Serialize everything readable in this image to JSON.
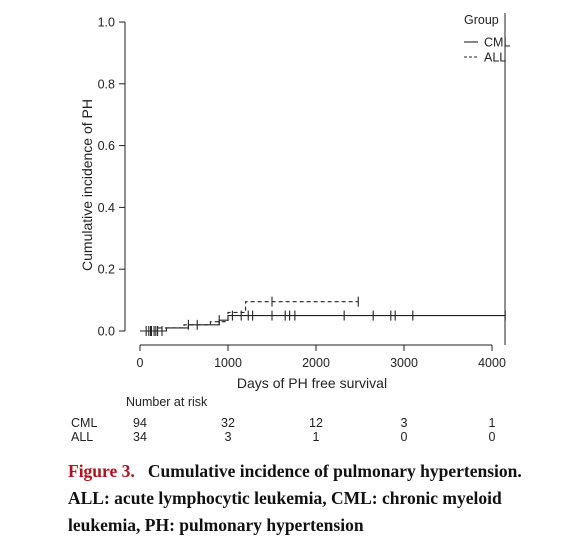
{
  "chart_data": {
    "type": "line",
    "ylabel": "Cumulative incidence of PH",
    "xlabel": "Days of PH free survival",
    "xlim": [
      0,
      4200
    ],
    "ylim": [
      0,
      1.0
    ],
    "x_ticks": [
      0,
      1000,
      2000,
      3000,
      4000
    ],
    "y_ticks": [
      0.0,
      0.2,
      0.4,
      0.6,
      0.8,
      1.0
    ],
    "x_tick_labels": [
      "0",
      "1000",
      "2000",
      "3000",
      "4000"
    ],
    "y_tick_labels": [
      "0.0",
      "0.2",
      "0.4",
      "0.6",
      "0.8",
      "1.0"
    ],
    "grid": false,
    "legend": {
      "title": "Group",
      "placement": "top-right"
    },
    "series": [
      {
        "name": "CML",
        "line_style": "solid",
        "step_x": [
          0,
          300,
          550,
          900,
          1000,
          4150
        ],
        "step_y": [
          0.0,
          0.01,
          0.02,
          0.035,
          0.05,
          0.05
        ],
        "censor_x": [
          100,
          130,
          160,
          200,
          250,
          550,
          650,
          900,
          1050,
          1150,
          1230,
          1280,
          1500,
          1650,
          1700,
          1760,
          2320,
          2650,
          2850,
          2900,
          3100,
          4150
        ],
        "censor_y": [
          0.0,
          0.0,
          0.0,
          0.0,
          0.0,
          0.02,
          0.02,
          0.035,
          0.05,
          0.05,
          0.05,
          0.05,
          0.05,
          0.05,
          0.05,
          0.05,
          0.05,
          0.05,
          0.05,
          0.05,
          0.05,
          0.05
        ]
      },
      {
        "name": "ALL",
        "line_style": "dashed",
        "step_x": [
          0,
          200,
          500,
          800,
          1000,
          1200,
          2480
        ],
        "step_y": [
          0.0,
          0.01,
          0.02,
          0.03,
          0.06,
          0.095,
          0.095
        ],
        "censor_x": [
          70,
          120,
          180,
          1500,
          2480
        ],
        "censor_y": [
          0.0,
          0.0,
          0.0,
          0.095,
          0.095
        ]
      }
    ],
    "risk_table": {
      "title": "Number at risk",
      "times": [
        0,
        1000,
        2000,
        3000,
        4000
      ],
      "rows": [
        {
          "group": "CML",
          "values": [
            "94",
            "32",
            "12",
            "3",
            "1"
          ]
        },
        {
          "group": "ALL",
          "values": [
            "34",
            "3",
            "1",
            "0",
            "0"
          ]
        }
      ]
    }
  },
  "caption": {
    "label": "Figure 3.",
    "title": "Cumulative incidence of pulmonary hypertension.",
    "body": "ALL: acute lymphocytic leukemia, CML: chronic myeloid leukemia, PH: pulmonary hypertension",
    "label_color": "#b1121c"
  },
  "colors": {
    "ink": "#222222",
    "caption": "#111111"
  }
}
